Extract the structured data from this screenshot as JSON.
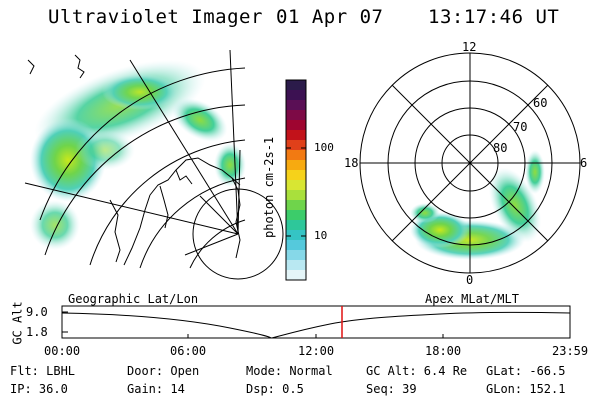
{
  "header": {
    "title": "Ultraviolet Imager",
    "date": "01 Apr 07",
    "time": "13:17:46 UT"
  },
  "colorbar": {
    "label": "photon cm-2s-1",
    "ticks": [
      "100",
      "10"
    ],
    "colors": [
      "#2b1b4a",
      "#3c1152",
      "#5a0f55",
      "#7d0a46",
      "#9e0530",
      "#c2121a",
      "#e0401a",
      "#f27a12",
      "#f7aa10",
      "#f6d21a",
      "#d8e633",
      "#a9e03c",
      "#6fd44b",
      "#3ccc6a",
      "#2ec79a",
      "#35c4c4",
      "#55c9dc",
      "#86d8e8",
      "#b9e8f2",
      "#e4f5f8"
    ]
  },
  "polar": {
    "hour_labels": [
      "12",
      "18",
      "6",
      "0"
    ],
    "lat_labels": [
      "60",
      "70",
      "80"
    ]
  },
  "timeline": {
    "left_title": "Geographic Lat/Lon",
    "right_title": "Apex MLat/MLT",
    "ylabel": "GC Alt",
    "y_ticks": [
      "9.0",
      "1.8"
    ],
    "x_ticks": [
      "00:00",
      "06:00",
      "12:00",
      "18:00",
      "23:59"
    ],
    "marker_time": "13:17:46",
    "marker_color": "#e01010"
  },
  "info": [
    [
      "Flt: LBHL",
      "Door: Open",
      "Mode: Normal",
      "GC Alt: 6.4 Re",
      "GLat: -66.5"
    ],
    [
      "IP: 36.0",
      "Gain: 14",
      "Dsp:     0.5",
      "Seq: 39",
      "GLon: 152.1"
    ]
  ]
}
